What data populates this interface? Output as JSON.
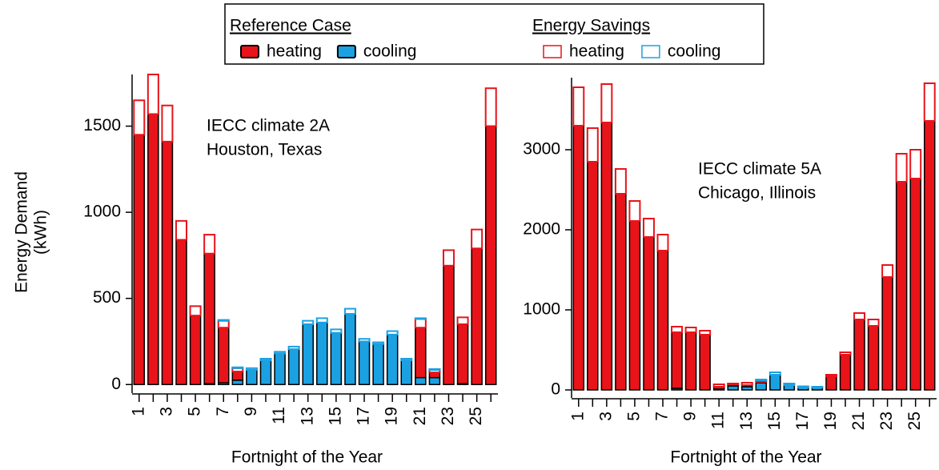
{
  "legend": {
    "groups": [
      {
        "title": "Reference Case",
        "entries": [
          {
            "name": "heating",
            "color": "#e8141a",
            "style": "filled"
          },
          {
            "name": "cooling",
            "color": "#1ba1e2",
            "style": "filled"
          }
        ]
      },
      {
        "title": "Energy Savings",
        "entries": [
          {
            "name": "heating",
            "color": "#e8141a",
            "style": "outline"
          },
          {
            "name": "cooling",
            "color": "#1ba1e2",
            "style": "outline"
          }
        ]
      }
    ]
  },
  "chart_data": [
    {
      "type": "stacked_bar",
      "annotation": [
        "IECC climate 2A",
        "Houston, Texas"
      ],
      "ylabel": [
        "Energy Demand",
        "(kWh)"
      ],
      "xlabel": "Fortnight of the Year",
      "categories": [
        "1",
        null,
        "3",
        null,
        "5",
        null,
        "7",
        null,
        "9",
        null,
        "11",
        null,
        "13",
        null,
        "15",
        null,
        "17",
        null,
        "19",
        null,
        "21",
        null,
        "23",
        null,
        "25",
        null
      ],
      "ylim": [
        -50,
        1800
      ],
      "yticks": [
        0,
        500,
        1000,
        1500
      ],
      "series": [
        {
          "color": "#1ba1e2",
          "style": "filled",
          "values": [
            0,
            0,
            0,
            0,
            0,
            5,
            10,
            25,
            85,
            140,
            180,
            205,
            350,
            360,
            300,
            410,
            250,
            235,
            290,
            140,
            40,
            40,
            0,
            5,
            0,
            0
          ]
        },
        {
          "color": "#e8141a",
          "style": "filled",
          "values": [
            1450,
            1570,
            1410,
            840,
            400,
            755,
            320,
            50,
            0,
            0,
            0,
            0,
            0,
            0,
            0,
            0,
            0,
            0,
            0,
            0,
            290,
            30,
            690,
            345,
            790,
            1500
          ]
        },
        {
          "color": "#e8141a",
          "style": "outline",
          "values": [
            200,
            230,
            210,
            110,
            55,
            110,
            40,
            20,
            0,
            0,
            0,
            0,
            0,
            0,
            0,
            0,
            0,
            0,
            0,
            0,
            50,
            15,
            90,
            40,
            110,
            220
          ]
        },
        {
          "color": "#1ba1e2",
          "style": "outline",
          "values": [
            0,
            0,
            0,
            0,
            0,
            0,
            5,
            5,
            10,
            10,
            10,
            15,
            20,
            25,
            20,
            30,
            15,
            10,
            20,
            10,
            5,
            5,
            0,
            0,
            0,
            0
          ]
        }
      ]
    },
    {
      "type": "stacked_bar",
      "annotation": [
        "IECC climate 5A",
        "Chicago, Illinois"
      ],
      "xlabel": "Fortnight of the Year",
      "categories": [
        "1",
        null,
        "3",
        null,
        "5",
        null,
        "7",
        null,
        "9",
        null,
        "11",
        null,
        "13",
        null,
        "15",
        null,
        "17",
        null,
        "19",
        null,
        "21",
        null,
        "23",
        null,
        "25",
        null
      ],
      "ylim": [
        -100,
        3900
      ],
      "yticks": [
        0,
        1000,
        2000,
        3000
      ],
      "series": [
        {
          "color": "#1ba1e2",
          "style": "filled",
          "values": [
            0,
            0,
            0,
            0,
            0,
            0,
            0,
            20,
            0,
            0,
            10,
            50,
            40,
            90,
            190,
            60,
            30,
            30,
            0,
            0,
            0,
            0,
            0,
            0,
            0,
            0
          ]
        },
        {
          "color": "#e8141a",
          "style": "filled",
          "values": [
            3300,
            2850,
            3340,
            2450,
            2110,
            1910,
            1740,
            700,
            720,
            690,
            30,
            20,
            20,
            10,
            0,
            0,
            0,
            0,
            170,
            440,
            880,
            800,
            1410,
            2600,
            2640,
            3360
          ]
        },
        {
          "color": "#e8141a",
          "style": "outline",
          "values": [
            480,
            420,
            480,
            310,
            250,
            230,
            200,
            70,
            60,
            50,
            30,
            10,
            30,
            20,
            0,
            0,
            0,
            0,
            20,
            30,
            80,
            80,
            150,
            350,
            360,
            470
          ]
        },
        {
          "color": "#1ba1e2",
          "style": "outline",
          "values": [
            0,
            0,
            0,
            0,
            0,
            0,
            0,
            0,
            0,
            0,
            0,
            0,
            0,
            10,
            30,
            20,
            15,
            10,
            0,
            0,
            0,
            0,
            0,
            0,
            0,
            0
          ]
        }
      ]
    }
  ]
}
